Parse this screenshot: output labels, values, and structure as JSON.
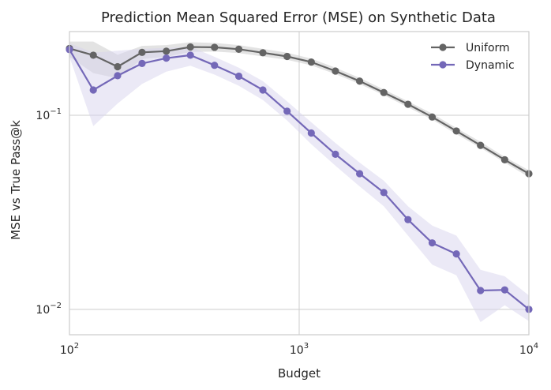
{
  "chart_data": {
    "type": "line",
    "title": "Prediction Mean Squared Error (MSE) on Synthetic Data",
    "xlabel": "Budget",
    "ylabel": "MSE vs True Pass@k",
    "xscale": "log",
    "yscale": "log",
    "xlim": [
      100,
      10000
    ],
    "ylim": [
      0.0074,
      0.27
    ],
    "grid": true,
    "legend_position": "top-right",
    "x_ticks": [
      {
        "base": "10",
        "exp": "2",
        "value": 100
      },
      {
        "base": "10",
        "exp": "3",
        "value": 1000
      },
      {
        "base": "10",
        "exp": "4",
        "value": 10000
      }
    ],
    "y_ticks": [
      {
        "base": "10",
        "exp": "−1",
        "value": 0.1
      },
      {
        "base": "10",
        "exp": "−2",
        "value": 0.01
      }
    ],
    "x": [
      100,
      127,
      162,
      207,
      264,
      336,
      428,
      546,
      695,
      886,
      1129,
      1438,
      1833,
      2336,
      2976,
      3793,
      4833,
      6158,
      7848,
      10000
    ],
    "series": [
      {
        "name": "Uniform",
        "color": "#646464",
        "band_color": "#c8c8c8",
        "values": [
          0.221,
          0.204,
          0.178,
          0.211,
          0.214,
          0.225,
          0.224,
          0.219,
          0.21,
          0.201,
          0.188,
          0.169,
          0.15,
          0.131,
          0.114,
          0.098,
          0.083,
          0.07,
          0.059,
          0.05
        ],
        "lower": [
          0.2,
          0.165,
          0.155,
          0.195,
          0.2,
          0.212,
          0.213,
          0.209,
          0.201,
          0.193,
          0.181,
          0.163,
          0.145,
          0.127,
          0.11,
          0.095,
          0.08,
          0.068,
          0.057,
          0.048
        ],
        "upper": [
          0.24,
          0.24,
          0.205,
          0.228,
          0.23,
          0.238,
          0.236,
          0.23,
          0.22,
          0.21,
          0.196,
          0.176,
          0.156,
          0.136,
          0.118,
          0.102,
          0.086,
          0.073,
          0.061,
          0.052
        ]
      },
      {
        "name": "Dynamic",
        "color": "#7468b8",
        "band_color": "#d7d3ee",
        "values": [
          0.218,
          0.135,
          0.16,
          0.185,
          0.197,
          0.204,
          0.181,
          0.159,
          0.135,
          0.105,
          0.081,
          0.063,
          0.05,
          0.04,
          0.029,
          0.022,
          0.0193,
          0.0125,
          0.0126,
          0.01
        ],
        "lower": [
          0.2,
          0.088,
          0.115,
          0.145,
          0.168,
          0.18,
          0.162,
          0.142,
          0.12,
          0.094,
          0.071,
          0.055,
          0.043,
          0.034,
          0.024,
          0.017,
          0.015,
          0.0086,
          0.0105,
          0.0087
        ],
        "upper": [
          0.235,
          0.21,
          0.215,
          0.22,
          0.222,
          0.226,
          0.2,
          0.176,
          0.15,
          0.118,
          0.092,
          0.072,
          0.057,
          0.046,
          0.034,
          0.027,
          0.024,
          0.016,
          0.0148,
          0.0118
        ]
      }
    ]
  }
}
